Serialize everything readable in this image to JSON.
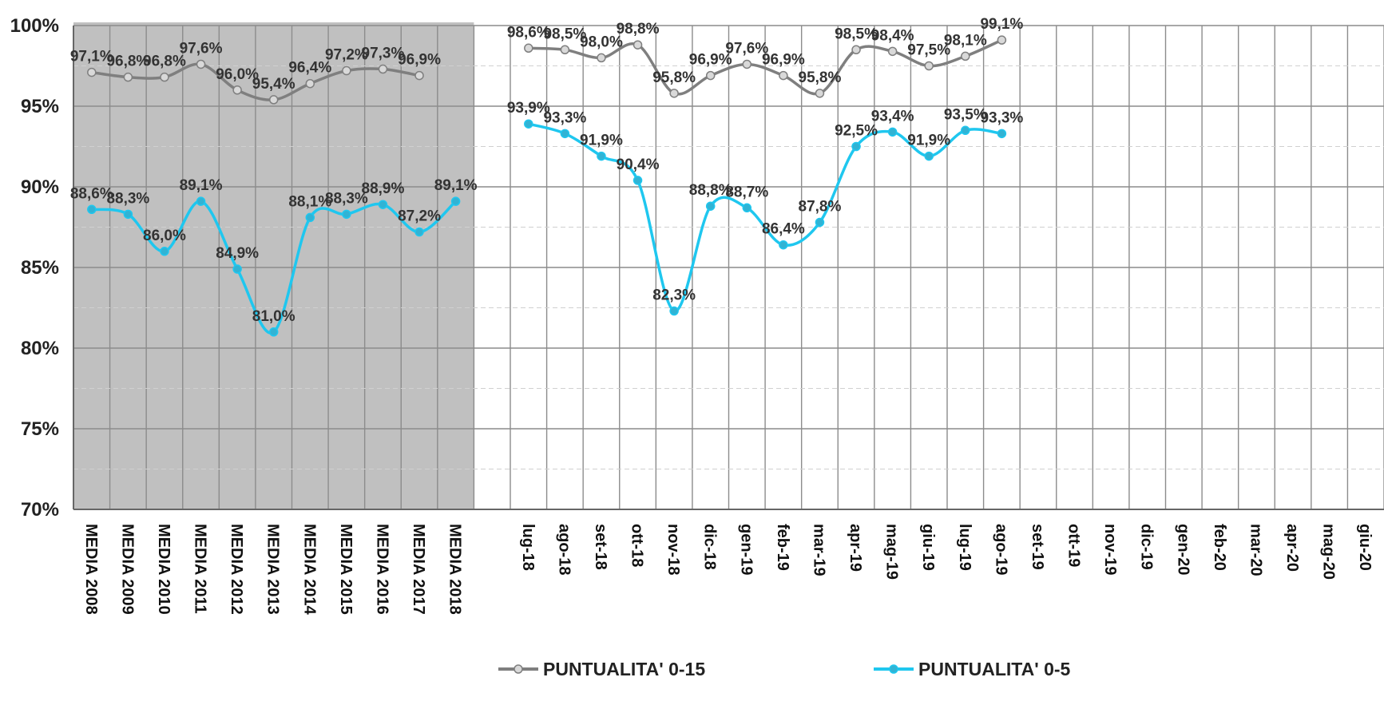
{
  "chart_data": {
    "type": "line",
    "categories": [
      "MEDIA 2008",
      "MEDIA 2009",
      "MEDIA 2010",
      "MEDIA 2011",
      "MEDIA 2012",
      "MEDIA 2013",
      "MEDIA 2014",
      "MEDIA 2015",
      "MEDIA 2016",
      "MEDIA 2017",
      "MEDIA 2018",
      "",
      "lug-18",
      "ago-18",
      "set-18",
      "ott-18",
      "nov-18",
      "dic-18",
      "gen-19",
      "feb-19",
      "mar-19",
      "apr-19",
      "mag-19",
      "giu-19",
      "lug-19",
      "ago-19",
      "set-19",
      "ott-19",
      "nov-19",
      "dic-19",
      "gen-20",
      "feb-20",
      "mar-20",
      "apr-20",
      "mag-20",
      "giu-20"
    ],
    "ylim": [
      70,
      100
    ],
    "yticks": [
      "70%",
      "75%",
      "80%",
      "85%",
      "90%",
      "95%",
      "100%"
    ],
    "shaded_region": "MEDIA 2008 – MEDIA 2018",
    "grid": true,
    "legend_position": "bottom",
    "series": [
      {
        "name": "PUNTUALITA' 0-15",
        "color": "#7f7f7f",
        "marker_fill": "#d9d9d9",
        "values": [
          97.1,
          96.8,
          96.8,
          97.6,
          96.0,
          95.4,
          96.4,
          97.2,
          97.3,
          96.9,
          null,
          null,
          98.6,
          98.5,
          98.0,
          98.8,
          95.8,
          96.9,
          97.6,
          96.9,
          95.8,
          98.5,
          98.4,
          97.5,
          98.1,
          99.1,
          null,
          null,
          null,
          null,
          null,
          null,
          null,
          null,
          null,
          null
        ],
        "labels": [
          "97,1%",
          "96,8%",
          "96,8%",
          "97,6%",
          "96,0%",
          "95,4%",
          "96,4%",
          "97,2%",
          "97,3%",
          "96,9%",
          "",
          "",
          "98,6%",
          "98,5%",
          "98,0%",
          "98,8%",
          "95,8%",
          "96,9%",
          "97,6%",
          "96,9%",
          "95,8%",
          "98,5%",
          "98,4%",
          "97,5%",
          "98,1%",
          "99,1%",
          "",
          "",
          "",
          "",
          "",
          "",
          "",
          "",
          "",
          ""
        ]
      },
      {
        "name": "PUNTUALITA' 0-5",
        "color": "#1fc7ef",
        "marker_fill": "#31b3d4",
        "values": [
          88.6,
          88.3,
          86.0,
          89.1,
          84.9,
          81.0,
          88.1,
          88.3,
          88.9,
          87.2,
          89.1,
          null,
          93.9,
          93.3,
          91.9,
          90.4,
          82.3,
          88.8,
          88.7,
          86.4,
          87.8,
          92.5,
          93.4,
          91.9,
          93.5,
          93.3,
          null,
          null,
          null,
          null,
          null,
          null,
          null,
          null,
          null,
          null
        ],
        "labels": [
          "88,6%",
          "88,3%",
          "86,0%",
          "89,1%",
          "84,9%",
          "81,0%",
          "88,1%",
          "88,3%",
          "88,9%",
          "87,2%",
          "89,1%",
          "",
          "93,9%",
          "93,3%",
          "91,9%",
          "90,4%",
          "82,3%",
          "88,8%",
          "88,7%",
          "86,4%",
          "87,8%",
          "92,5%",
          "93,4%",
          "91,9%",
          "93,5%",
          "93,3%",
          "",
          "",
          "",
          "",
          "",
          "",
          "",
          "",
          "",
          ""
        ]
      }
    ]
  }
}
